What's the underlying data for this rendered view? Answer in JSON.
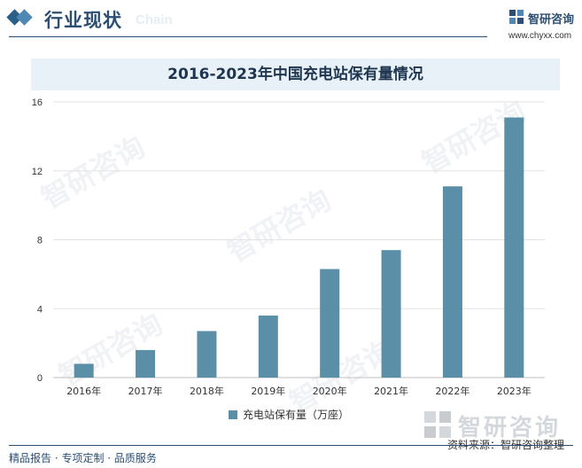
{
  "header": {
    "section_title": "行业现状",
    "section_subtitle_en": "Chain",
    "logo_name": "智研咨询",
    "logo_url": "www.chyxx.com"
  },
  "watermark_text": "智研咨询",
  "colors": {
    "bar": "#5b8fa8",
    "primary": "#2b4e72",
    "title_bg": "#e8f1f8"
  },
  "chart_data": {
    "type": "bar",
    "title": "2016-2023年中国充电站保有量情况",
    "categories": [
      "2016年",
      "2017年",
      "2018年",
      "2019年",
      "2020年",
      "2021年",
      "2022年",
      "2023年"
    ],
    "series": [
      {
        "name": "充电站保有量（万座）",
        "values": [
          0.8,
          1.6,
          2.7,
          3.6,
          6.3,
          7.4,
          11.1,
          15.1
        ]
      }
    ],
    "yticks": [
      0,
      4,
      8,
      12,
      16
    ],
    "ylim": [
      0,
      16
    ],
    "grid": true,
    "legend": "bottom"
  },
  "footer": {
    "left": "精品报告 · 专项定制 · 品质服务",
    "source": "资料来源：智研咨询整理",
    "big_logo": "智研咨询"
  }
}
